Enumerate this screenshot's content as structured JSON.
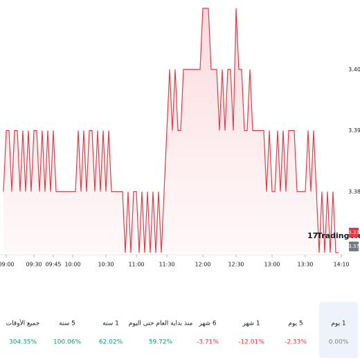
{
  "chart_data": {
    "type": "line",
    "brand": "TradingView",
    "values": [
      3.38,
      3.39,
      3.39,
      3.38,
      3.39,
      3.39,
      3.38,
      3.39,
      3.38,
      3.39,
      3.38,
      3.39,
      3.39,
      3.38,
      3.39,
      3.38,
      3.39,
      3.38,
      3.39,
      3.38,
      3.38,
      3.38,
      3.38,
      3.38,
      3.38,
      3.38,
      3.38,
      3.39,
      3.38,
      3.39,
      3.38,
      3.39,
      3.39,
      3.38,
      3.39,
      3.38,
      3.39,
      3.38,
      3.39,
      3.38,
      3.38,
      3.38,
      3.38,
      3.38,
      3.37,
      3.38,
      3.37,
      3.38,
      3.38,
      3.37,
      3.38,
      3.37,
      3.38,
      3.37,
      3.38,
      3.37,
      3.38,
      3.37,
      3.38,
      3.39,
      3.4,
      3.39,
      3.4,
      3.39,
      3.39,
      3.4,
      3.4,
      3.4,
      3.4,
      3.4,
      3.4,
      3.4,
      3.41,
      3.41,
      3.41,
      3.4,
      3.4,
      3.4,
      3.39,
      3.4,
      3.39,
      3.4,
      3.4,
      3.39,
      3.41,
      3.4,
      3.4,
      3.39,
      3.39,
      3.4,
      3.39,
      3.39,
      3.39,
      3.39,
      3.39,
      3.38,
      3.39,
      3.38,
      3.38,
      3.39,
      3.38,
      3.39,
      3.38,
      3.39,
      3.39,
      3.39,
      3.38,
      3.38,
      3.38,
      3.38,
      3.39,
      3.38,
      3.39,
      3.38,
      3.37,
      3.38,
      3.37,
      3.38,
      3.37,
      3.38,
      3.37,
      3.37
    ],
    "color": "#e53945",
    "ylim": [
      3.37,
      3.41
    ],
    "yticks": [
      3.38,
      3.39,
      {
        "value": 3.4,
        "label": "3.40"
      }
    ],
    "xlim": [
      0,
      122
    ],
    "xticks": [
      {
        "value": 1,
        "label": "09:00"
      },
      {
        "value": 11,
        "label": "09:30"
      },
      {
        "value": 18,
        "label": "09:45"
      },
      {
        "value": 25,
        "label": "10:00"
      },
      {
        "value": 37,
        "label": "10:30"
      },
      {
        "value": 48,
        "label": "11:00"
      },
      {
        "value": 59,
        "label": "11:30"
      },
      {
        "value": 72,
        "label": "12:00"
      },
      {
        "value": 84,
        "label": "12:30"
      },
      {
        "value": 97,
        "label": "13:00"
      },
      {
        "value": 109,
        "label": "13:30"
      },
      {
        "value": 122,
        "label": "14:10"
      }
    ],
    "price_tags": [
      "3.37",
      "3.37"
    ]
  },
  "periods": {
    "labels": [
      "1 يوم",
      "5 يوم",
      "1 شهر",
      "6 شهر",
      "منذ بداية العام حتى اليوم",
      "1 سنة",
      "5 سنة",
      "جميع الأوقات"
    ],
    "values": [
      0,
      -2.33,
      -12.01,
      -3.71,
      59.72,
      62.02,
      100.06,
      304.35
    ],
    "value_labels": [
      "0.00%",
      "-2.33%",
      "-12.01%",
      "-3.71%",
      "59.72%",
      "62.02%",
      "100.06%",
      "304.35%"
    ]
  }
}
